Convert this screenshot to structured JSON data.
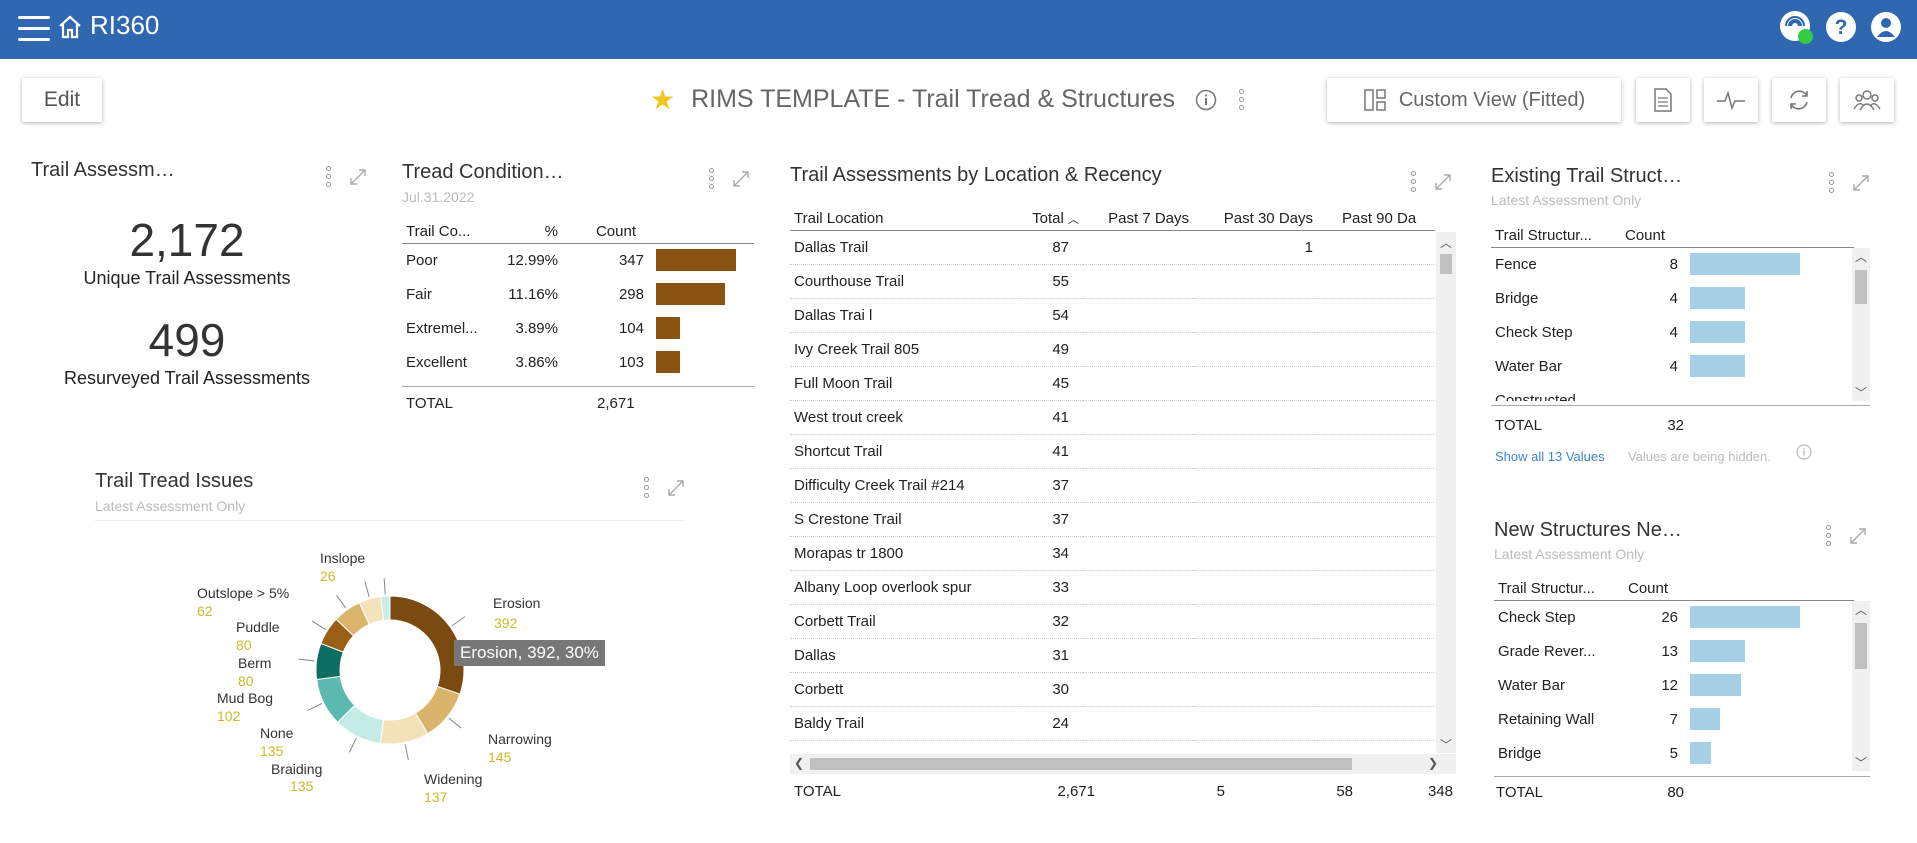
{
  "app": {
    "name": "RI360"
  },
  "toolbar": {
    "edit_label": "Edit",
    "dashboard_title": "RIMS TEMPLATE - Trail Tread & Structures",
    "custom_view_label": "Custom View (Fitted)"
  },
  "kpi": {
    "title": "Trail Assessm…",
    "value1": "2,172",
    "label1": "Unique Trail Assessments",
    "value2": "499",
    "label2": "Resurveyed Trail Assessments"
  },
  "tread": {
    "title": "Tread Condition…",
    "subtitle": "Jul.31.2022",
    "headers": [
      "Trail Co...",
      "%",
      "Count"
    ],
    "rows": [
      {
        "name": "Poor",
        "pct": "12.99%",
        "count": "347",
        "fraction": 1.0
      },
      {
        "name": "Fair",
        "pct": "11.16%",
        "count": "298",
        "fraction": 0.86
      },
      {
        "name": "Extremel...",
        "pct": "3.89%",
        "count": "104",
        "fraction": 0.3
      },
      {
        "name": "Excellent",
        "pct": "3.86%",
        "count": "103",
        "fraction": 0.3
      }
    ],
    "total_label": "TOTAL",
    "total_value": "2,671"
  },
  "issues": {
    "title": "Trail Tread Issues",
    "subtitle": "Latest Assessment Only",
    "tooltip": "Erosion, 392, 30%",
    "slices": [
      {
        "name": "Erosion",
        "value": "392",
        "color": "#7a4a10"
      },
      {
        "name": "Narrowing",
        "value": "145",
        "color": "#d9b46a"
      },
      {
        "name": "Widening",
        "value": "137",
        "color": "#f3e2b8"
      },
      {
        "name": "Braiding",
        "value": "135",
        "color": "#c5ebe6"
      },
      {
        "name": "None",
        "value": "135",
        "color": "#5bb9b0"
      },
      {
        "name": "Mud Bog",
        "value": "102",
        "color": "#0d6e64"
      },
      {
        "name": "Berm",
        "value": "80",
        "color": "#9a5f17"
      },
      {
        "name": "Puddle",
        "value": "80",
        "color": "#dbb56c"
      },
      {
        "name": "Outslope > 5%",
        "value": "62",
        "color": "#f4e3ba"
      },
      {
        "name": "Inslope",
        "value": "26",
        "color": "#c8ece7"
      }
    ]
  },
  "locations": {
    "title": "Trail Assessments by Location & Recency",
    "headers": [
      "Trail Location",
      "Total",
      "Past 7 Days",
      "Past 30 Days",
      "Past 90 Da"
    ],
    "rows": [
      {
        "name": "Dallas Trail",
        "total": "87",
        "p7": "",
        "p30": "1",
        "p90": ""
      },
      {
        "name": "Courthouse Trail",
        "total": "55",
        "p7": "",
        "p30": "",
        "p90": ""
      },
      {
        "name": "Dallas Trai l",
        "total": "54",
        "p7": "",
        "p30": "",
        "p90": ""
      },
      {
        "name": "Ivy Creek Trail 805",
        "total": "49",
        "p7": "",
        "p30": "",
        "p90": ""
      },
      {
        "name": "Full Moon Trail",
        "total": "45",
        "p7": "",
        "p30": "",
        "p90": ""
      },
      {
        "name": "West trout creek",
        "total": "41",
        "p7": "",
        "p30": "",
        "p90": ""
      },
      {
        "name": "Shortcut Trail",
        "total": "41",
        "p7": "",
        "p30": "",
        "p90": ""
      },
      {
        "name": "Difficulty Creek Trail #214",
        "total": "37",
        "p7": "",
        "p30": "",
        "p90": ""
      },
      {
        "name": "S Crestone Trail",
        "total": "37",
        "p7": "",
        "p30": "",
        "p90": ""
      },
      {
        "name": "Morapas tr 1800",
        "total": "34",
        "p7": "",
        "p30": "",
        "p90": ""
      },
      {
        "name": "Albany Loop overlook spur",
        "total": "33",
        "p7": "",
        "p30": "",
        "p90": ""
      },
      {
        "name": "Corbett Trail",
        "total": "32",
        "p7": "",
        "p30": "",
        "p90": ""
      },
      {
        "name": "Dallas",
        "total": "31",
        "p7": "",
        "p30": "",
        "p90": ""
      },
      {
        "name": "Corbett",
        "total": "30",
        "p7": "",
        "p30": "",
        "p90": ""
      },
      {
        "name": "Baldy Trail",
        "total": "24",
        "p7": "",
        "p30": "",
        "p90": ""
      }
    ],
    "total_label": "TOTAL",
    "total": "2,671",
    "total_p7": "5",
    "total_p30": "58",
    "total_p90": "348"
  },
  "existing": {
    "title": "Existing Trail Struct…",
    "subtitle": "Latest Assessment Only",
    "headers": [
      "Trail Structur...",
      "Count"
    ],
    "rows": [
      {
        "name": "Fence",
        "count": "8",
        "fraction": 1.0
      },
      {
        "name": "Bridge",
        "count": "4",
        "fraction": 0.5
      },
      {
        "name": "Check Step",
        "count": "4",
        "fraction": 0.5
      },
      {
        "name": "Water Bar",
        "count": "4",
        "fraction": 0.5
      }
    ],
    "partial_row": "Constructed",
    "total_label": "TOTAL",
    "total": "32",
    "show_all": "Show all 13 Values",
    "hidden_note": "Values are being hidden."
  },
  "newstruct": {
    "title": "New Structures Ne…",
    "subtitle": "Latest Assessment Only",
    "headers": [
      "Trail Structur...",
      "Count"
    ],
    "rows": [
      {
        "name": "Check Step",
        "count": "26",
        "fraction": 1.0
      },
      {
        "name": "Grade Rever...",
        "count": "13",
        "fraction": 0.5
      },
      {
        "name": "Water Bar",
        "count": "12",
        "fraction": 0.46
      },
      {
        "name": "Retaining Wall",
        "count": "7",
        "fraction": 0.27
      },
      {
        "name": "Bridge",
        "count": "5",
        "fraction": 0.19
      }
    ],
    "total_label": "TOTAL",
    "total": "80"
  }
}
